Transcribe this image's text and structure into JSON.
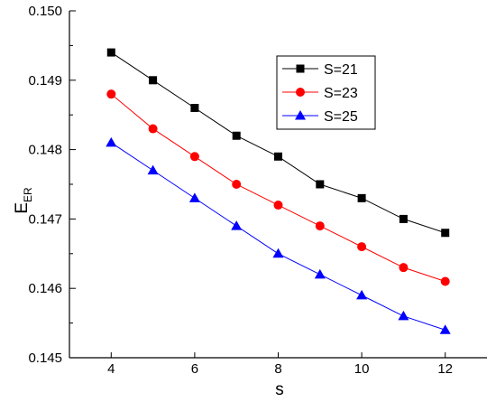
{
  "chart_data": {
    "type": "line",
    "title": "",
    "xlabel": "s",
    "ylabel": {
      "main": "E",
      "sub": "ER"
    },
    "x": [
      4,
      5,
      6,
      7,
      8,
      9,
      10,
      11,
      12
    ],
    "xlim": [
      3,
      13
    ],
    "ylim": [
      0.145,
      0.15
    ],
    "xticks": [
      "4",
      "6",
      "8",
      "10",
      "12"
    ],
    "yticks": [
      "0.145",
      "0.146",
      "0.147",
      "0.148",
      "0.149",
      "0.150"
    ],
    "grid": false,
    "legend_position": "top-right",
    "series": [
      {
        "name": "S=21",
        "color": "#000000",
        "marker": "square",
        "values": [
          0.1494,
          0.149,
          0.1486,
          0.1482,
          0.1479,
          0.1475,
          0.1473,
          0.147,
          0.1468
        ]
      },
      {
        "name": "S=23",
        "color": "#ff0000",
        "marker": "circle",
        "values": [
          0.1488,
          0.1483,
          0.1479,
          0.1475,
          0.1472,
          0.1469,
          0.1466,
          0.1463,
          0.1461
        ]
      },
      {
        "name": "S=25",
        "color": "#0000ff",
        "marker": "triangle",
        "values": [
          0.1481,
          0.1477,
          0.1473,
          0.1469,
          0.1465,
          0.1462,
          0.1459,
          0.1456,
          0.1454
        ]
      }
    ]
  }
}
